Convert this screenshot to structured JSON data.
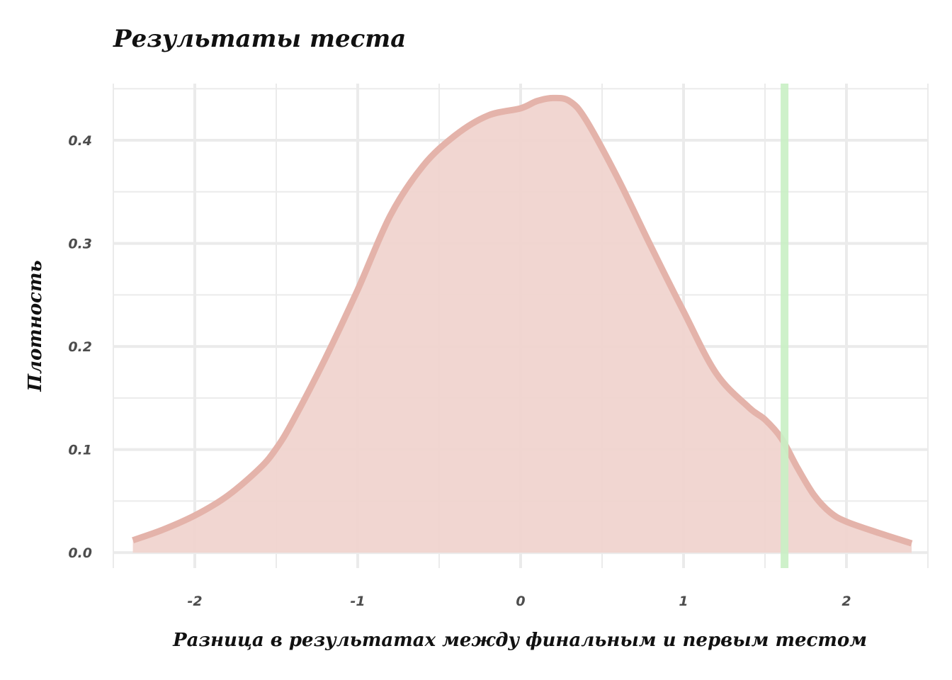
{
  "chart_data": {
    "type": "area",
    "title": "Результаты теста",
    "xlabel": "Разница в результатах между финальным и первым тестом",
    "ylabel": "Плотность",
    "xlim": [
      -2.5,
      2.5
    ],
    "ylim": [
      -0.015,
      0.455
    ],
    "x_ticks": [
      -2,
      -1,
      0,
      1,
      2
    ],
    "x_tick_labels": [
      "-2",
      "-1",
      "0",
      "1",
      "2"
    ],
    "y_ticks": [
      0.0,
      0.1,
      0.2,
      0.3,
      0.4
    ],
    "y_tick_labels": [
      "0.0",
      "0.1",
      "0.2",
      "0.3",
      "0.4"
    ],
    "grid": true,
    "series": [
      {
        "x": [
          -2.38,
          -2.2,
          -2.0,
          -1.8,
          -1.6,
          -1.5,
          -1.4,
          -1.2,
          -1.0,
          -0.8,
          -0.6,
          -0.4,
          -0.2,
          0.0,
          0.1,
          0.2,
          0.3,
          0.4,
          0.6,
          0.8,
          1.0,
          1.2,
          1.4,
          1.5,
          1.6,
          1.7,
          1.8,
          1.9,
          2.0,
          2.2,
          2.4
        ],
        "y": [
          0.012,
          0.022,
          0.036,
          0.055,
          0.082,
          0.101,
          0.127,
          0.188,
          0.255,
          0.327,
          0.375,
          0.405,
          0.424,
          0.431,
          0.438,
          0.441,
          0.438,
          0.42,
          0.362,
          0.297,
          0.234,
          0.174,
          0.141,
          0.129,
          0.111,
          0.082,
          0.056,
          0.039,
          0.03,
          0.019,
          0.009
        ],
        "color": "#e4b3aa",
        "fill": "#f0d4cf"
      }
    ],
    "reference_line": {
      "x": 1.62,
      "color": "#c9f0c4"
    },
    "grid_color": "#ebebeb"
  }
}
